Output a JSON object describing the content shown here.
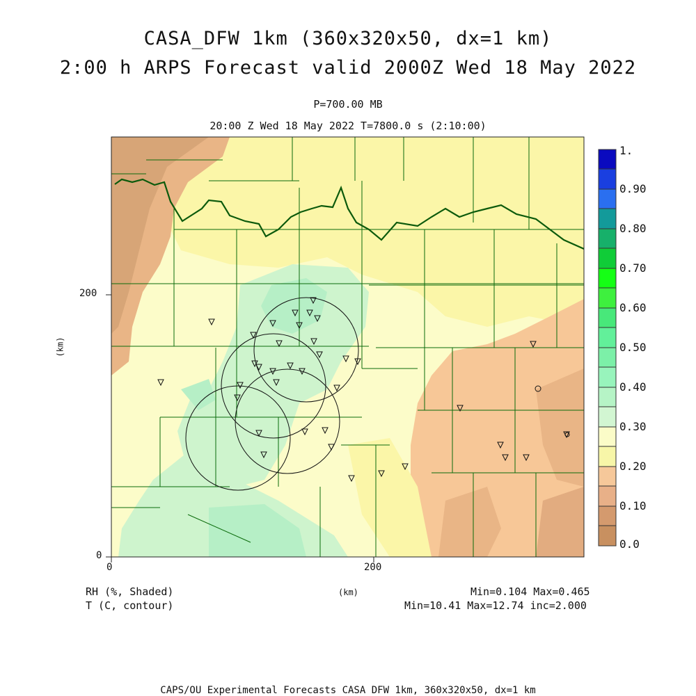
{
  "header": {
    "title_line1": "CASA_DFW 1km (360x320x50, dx=1 km)",
    "title_line2": "2:00 h ARPS Forecast valid 2000Z Wed 18 May 2022",
    "level": "P=700.00 MB",
    "valid_time": "20:00 Z Wed 18 May 2022   T=7800.0 s (2:10:00)"
  },
  "axes": {
    "unit_label_y": "(km)",
    "unit_label_x": "(km)",
    "x_ticks": [
      "0",
      "200"
    ],
    "y_ticks": [
      "0",
      "200"
    ]
  },
  "colorbar": {
    "labels": [
      "1.",
      "0.90",
      "0.80",
      "0.70",
      "0.60",
      "0.50",
      "0.40",
      "0.30",
      "0.20",
      "0.10",
      "0.0"
    ],
    "colors": [
      "#0a0abf",
      "#1a3fe0",
      "#2a6ff0",
      "#139a9a",
      "#17b06a",
      "#10cc38",
      "#15ff15",
      "#48e87a",
      "#7cf0a8",
      "#b0f0c4",
      "#d2f6d2",
      "#fbfcc8",
      "#f7f6a8",
      "#f6c89a",
      "#e8b088",
      "#d49a6e",
      "#c89060"
    ]
  },
  "legend": {
    "shaded_label": "RH (%, Shaded)",
    "contour_label": "T (C, contour)",
    "shaded_stats": "Min=0.104 Max=0.465",
    "contour_stats": "Min=10.41 Max=12.74 inc=2.000"
  },
  "footer": {
    "credit": "CAPS/OU Experimental Forecasts  CASA DFW 1km, 360x320x50, dx=1 km"
  },
  "map_colors": {
    "brown": "#d7a577",
    "orange": "#f7c797",
    "yellow": "#fbf6a8",
    "cream": "#fcfcc9",
    "lightgreen": "#cef4cd",
    "green": "#b6efc6",
    "county_line": "#006600"
  }
}
